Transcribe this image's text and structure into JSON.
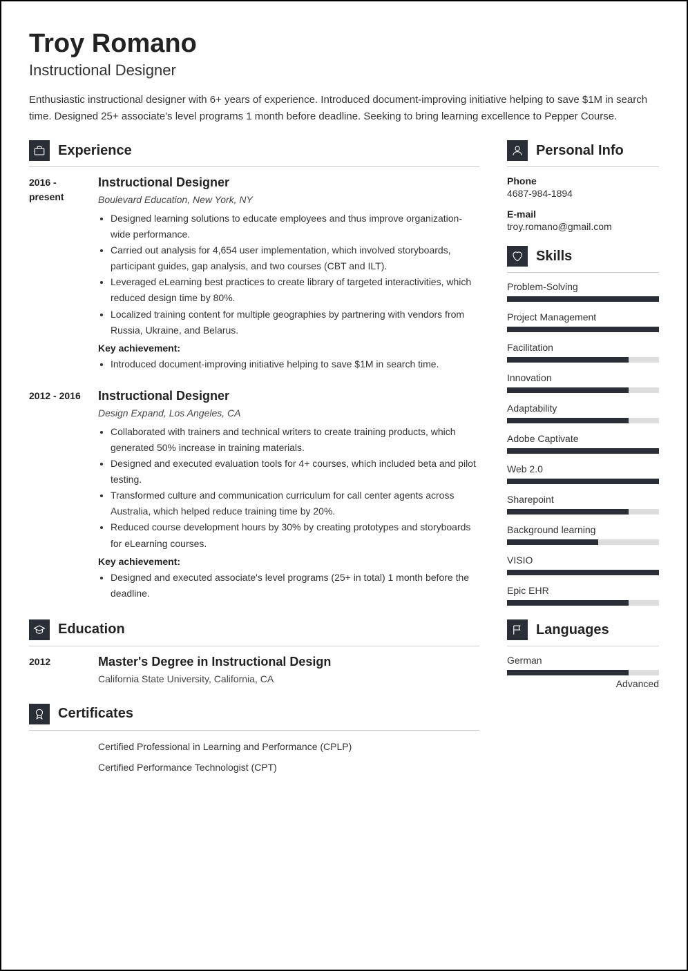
{
  "header": {
    "name": "Troy Romano",
    "title": "Instructional Designer",
    "summary": "Enthusiastic instructional designer with 6+ years of experience. Introduced document-improving initiative helping to save $1M in search time. Designed 25+ associate's level programs 1 month before deadline. Seeking to bring learning excellence to Pepper Course."
  },
  "sections": {
    "experience_title": "Experience",
    "education_title": "Education",
    "certificates_title": "Certificates",
    "personal_title": "Personal Info",
    "skills_title": "Skills",
    "languages_title": "Languages",
    "key_achievement_label": "Key achievement:"
  },
  "experience": [
    {
      "date": "2016 - present",
      "title": "Instructional Designer",
      "company": "Boulevard Education, New York, NY",
      "bullets": [
        "Designed learning solutions to educate employees and thus improve organization-wide performance.",
        "Carried out analysis for 4,654 user implementation, which involved storyboards, participant guides, gap analysis, and two courses (CBT and ILT).",
        "Leveraged eLearning best practices to create library of targeted interactivities, which reduced design time by 80%.",
        "Localized training content for multiple geographies by partnering with vendors from Russia, Ukraine, and Belarus."
      ],
      "achievements": [
        "Introduced document-improving initiative helping to save $1M in search time."
      ]
    },
    {
      "date": "2012 - 2016",
      "title": "Instructional Designer",
      "company": "Design Expand, Los Angeles, CA",
      "bullets": [
        "Collaborated with trainers and technical writers to create training products, which generated 50% increase in training materials.",
        "Designed and executed evaluation tools for 4+ courses, which included beta and pilot testing.",
        "Transformed culture and communication curriculum for call center agents across Australia, which helped reduce training time by 20%.",
        "Reduced course development hours by 30% by creating prototypes and storyboards for eLearning courses."
      ],
      "achievements": [
        "Designed and executed associate's level programs (25+ in total) 1 month before the deadline."
      ]
    }
  ],
  "education": [
    {
      "date": "2012",
      "title": "Master's Degree in Instructional Design",
      "school": "California State University, California, CA"
    }
  ],
  "certificates": [
    "Certified Professional in Learning and Performance (CPLP)",
    "Certified Performance Technologist (CPT)"
  ],
  "personal": {
    "phone_label": "Phone",
    "phone": "4687-984-1894",
    "email_label": "E-mail",
    "email": "troy.romano@gmail.com"
  },
  "skills": [
    {
      "name": "Problem-Solving",
      "pct": 100
    },
    {
      "name": "Project Management",
      "pct": 100
    },
    {
      "name": "Facilitation",
      "pct": 80
    },
    {
      "name": "Innovation",
      "pct": 80
    },
    {
      "name": "Adaptability",
      "pct": 80
    },
    {
      "name": "Adobe Captivate",
      "pct": 100
    },
    {
      "name": "Web 2.0",
      "pct": 100
    },
    {
      "name": "Sharepoint",
      "pct": 80
    },
    {
      "name": "Background learning",
      "pct": 60
    },
    {
      "name": "VISIO",
      "pct": 100
    },
    {
      "name": "Epic EHR",
      "pct": 80
    }
  ],
  "languages": [
    {
      "name": "German",
      "pct": 80,
      "level": "Advanced"
    }
  ],
  "colors": {
    "icon_bg": "#2a2e36",
    "bar_fill": "#2a2e36",
    "bar_bg": "#dddddd"
  }
}
